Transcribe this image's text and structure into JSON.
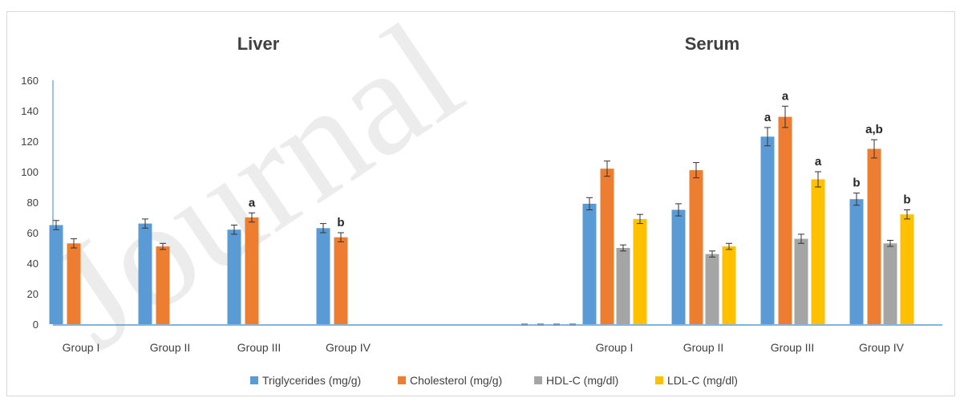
{
  "chart_data": {
    "type": "bar",
    "panels": [
      {
        "title": "Liver",
        "categories": [
          "Group I",
          "Group II",
          "Group III",
          "Group IV"
        ]
      },
      {
        "title": "Serum",
        "categories": [
          "Group I",
          "Group II",
          "Group III",
          "Group IV"
        ]
      }
    ],
    "ylim": [
      0,
      160
    ],
    "yticks": [
      0,
      20,
      40,
      60,
      80,
      100,
      120,
      140,
      160
    ],
    "grid": false,
    "legend_position": "bottom",
    "watermark": "Journal",
    "series": [
      {
        "name": "Triglycerides (mg/g)",
        "color": "#5B9BD5",
        "liver": [
          65,
          66,
          62,
          63
        ],
        "liver_err": [
          3,
          3,
          3,
          3
        ],
        "liver_labels": [
          "",
          "",
          "",
          ""
        ],
        "serum": [
          79,
          75,
          123,
          82
        ],
        "serum_err": [
          4,
          4,
          6,
          4
        ],
        "serum_labels": [
          "",
          "",
          "a",
          "b"
        ]
      },
      {
        "name": "Cholesterol (mg/g)",
        "color": "#ED7D31",
        "liver": [
          53,
          51,
          70,
          57
        ],
        "liver_err": [
          3,
          2,
          3,
          3
        ],
        "liver_labels": [
          "",
          "",
          "a",
          "b"
        ],
        "serum": [
          102,
          101,
          136,
          115
        ],
        "serum_err": [
          5,
          5,
          7,
          6
        ],
        "serum_labels": [
          "",
          "",
          "a",
          "a,b"
        ]
      },
      {
        "name": "HDL-C (mg/dl)",
        "color": "#A5A5A5",
        "liver": [
          0,
          0,
          0,
          0
        ],
        "liver_err": [
          0,
          0,
          0,
          0
        ],
        "liver_labels": [
          "",
          "",
          "",
          ""
        ],
        "serum": [
          50,
          46,
          56,
          53
        ],
        "serum_err": [
          2,
          2,
          3,
          2
        ],
        "serum_labels": [
          "",
          "",
          "",
          ""
        ]
      },
      {
        "name": "LDL-C (mg/dl)",
        "color": "#FFC000",
        "liver": [
          0,
          0,
          0,
          0
        ],
        "liver_err": [
          0,
          0,
          0,
          0
        ],
        "liver_labels": [
          "",
          "",
          "",
          ""
        ],
        "serum": [
          69,
          51,
          95,
          72
        ],
        "serum_err": [
          3,
          2,
          5,
          3
        ],
        "serum_labels": [
          "",
          "",
          "a",
          "b"
        ]
      }
    ]
  }
}
